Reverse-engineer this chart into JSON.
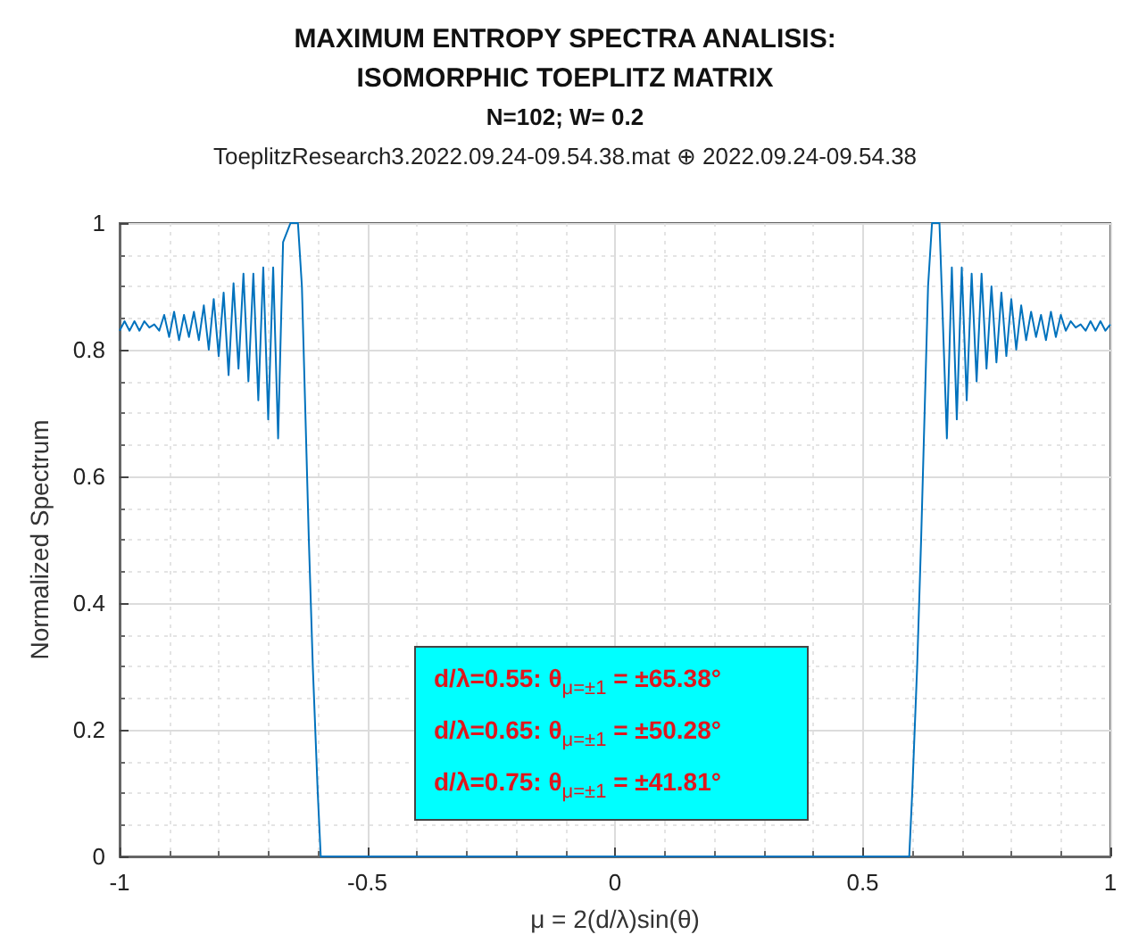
{
  "chart_data": {
    "type": "line",
    "title": "MAXIMUM ENTROPY SPECTRA ANALISIS:\nISOMORPHIC TOEPLITZ MATRIX",
    "subtitle": "N=102; W= 0.2",
    "xlabel": "μ = 2(d/λ)sin(θ)",
    "ylabel": "Normalized Spectrum",
    "annotations": [
      "ToeplitzResearch3.2022.09.24-09.54.38.mat ⊕ 2022.09.24-09.54.38",
      "d/λ=0.55: θ$_{μ=±1}$ = ±65.38°",
      "d/λ=0.65: θ$_{μ=±1}$ = ±50.28°",
      "d/λ=0.75: θ$_{μ=±1}$ = ±41.81°"
    ],
    "series": [
      {
        "color": "#0072bd",
        "x": [
          -1.0,
          -0.99,
          -0.98,
          -0.97,
          -0.96,
          -0.95,
          -0.94,
          -0.93,
          -0.92,
          -0.91,
          -0.9,
          -0.89,
          -0.88,
          -0.87,
          -0.86,
          -0.85,
          -0.84,
          -0.83,
          -0.82,
          -0.81,
          -0.8,
          -0.79,
          -0.78,
          -0.77,
          -0.76,
          -0.75,
          -0.74,
          -0.73,
          -0.72,
          -0.71,
          -0.7,
          -0.69,
          -0.68,
          -0.67,
          -0.655,
          -0.64,
          -0.632,
          -0.625,
          -0.618,
          -0.61,
          -0.6,
          -0.594,
          -0.5,
          0,
          0.5,
          0.594,
          0.6,
          0.61,
          0.618,
          0.625,
          0.632,
          0.64,
          0.655,
          0.67,
          0.68,
          0.69,
          0.7,
          0.71,
          0.72,
          0.73,
          0.74,
          0.75,
          0.76,
          0.77,
          0.78,
          0.79,
          0.8,
          0.81,
          0.82,
          0.83,
          0.84,
          0.85,
          0.86,
          0.87,
          0.88,
          0.89,
          0.9,
          0.91,
          0.92,
          0.93,
          0.94,
          0.95,
          0.96,
          0.97,
          0.98,
          0.99,
          1.0
        ],
        "values": [
          0.83,
          0.845,
          0.83,
          0.845,
          0.83,
          0.845,
          0.835,
          0.84,
          0.83,
          0.855,
          0.82,
          0.86,
          0.815,
          0.855,
          0.82,
          0.86,
          0.815,
          0.87,
          0.8,
          0.88,
          0.79,
          0.89,
          0.76,
          0.905,
          0.77,
          0.92,
          0.75,
          0.92,
          0.72,
          0.93,
          0.69,
          0.93,
          0.66,
          0.97,
          1.0,
          1.0,
          0.9,
          0.7,
          0.5,
          0.3,
          0.1,
          0,
          0,
          0,
          0,
          0,
          0.1,
          0.3,
          0.5,
          0.7,
          0.9,
          1.0,
          1.0,
          0.66,
          0.93,
          0.69,
          0.93,
          0.72,
          0.92,
          0.75,
          0.92,
          0.77,
          0.9,
          0.78,
          0.89,
          0.79,
          0.88,
          0.8,
          0.87,
          0.815,
          0.86,
          0.82,
          0.855,
          0.815,
          0.86,
          0.82,
          0.855,
          0.83,
          0.845,
          0.835,
          0.84,
          0.83,
          0.845,
          0.83,
          0.845,
          0.83,
          0.84
        ]
      }
    ],
    "xlim": [
      -1,
      1
    ],
    "xticks": [
      -1,
      -0.5,
      0,
      0.5,
      1
    ],
    "ylim": [
      0,
      1
    ],
    "yticks": [
      0,
      0.2,
      0.4,
      0.6,
      0.8,
      1
    ],
    "grid": true,
    "marker": "none",
    "line_style": "solid"
  }
}
